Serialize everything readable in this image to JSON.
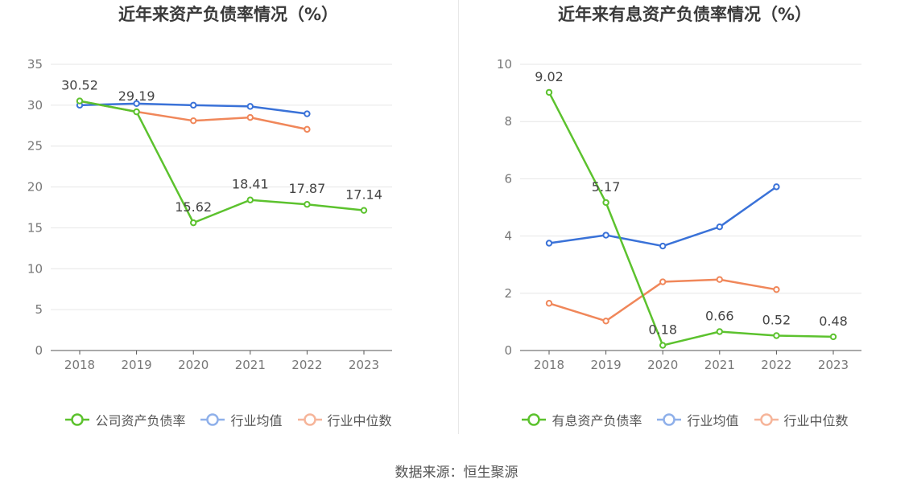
{
  "source": "数据来源：恒生聚源",
  "chart_data": [
    {
      "type": "line",
      "title": "近年来资产负债率情况（%）",
      "categories": [
        "2018",
        "2019",
        "2020",
        "2021",
        "2022",
        "2023"
      ],
      "ylim": [
        0,
        35
      ],
      "yticks": [
        0,
        5,
        10,
        15,
        20,
        25,
        30,
        35
      ],
      "grid": true,
      "legend_position": "bottom",
      "series": [
        {
          "name": "公司资产负债率",
          "color": "#5cc22e",
          "values": [
            30.52,
            29.19,
            15.62,
            18.41,
            17.87,
            17.14
          ],
          "labels": [
            "30.52",
            "29.19",
            "15.62",
            "18.41",
            "17.87",
            "17.14"
          ]
        },
        {
          "name": "行业均值",
          "color": "#3a72d8",
          "values": [
            30.0,
            30.2,
            30.0,
            29.85,
            28.95,
            null
          ]
        },
        {
          "name": "行业中位数",
          "color": "#f0875a",
          "values": [
            30.5,
            29.2,
            28.1,
            28.5,
            27.05,
            null
          ]
        }
      ]
    },
    {
      "type": "line",
      "title": "近年来有息资产负债率情况（%）",
      "categories": [
        "2018",
        "2019",
        "2020",
        "2021",
        "2022",
        "2023"
      ],
      "ylim": [
        0,
        10
      ],
      "yticks": [
        0,
        2,
        4,
        6,
        8,
        10
      ],
      "grid": true,
      "legend_position": "bottom",
      "series": [
        {
          "name": "有息资产负债率",
          "color": "#5cc22e",
          "values": [
            9.02,
            5.17,
            0.18,
            0.66,
            0.52,
            0.48
          ],
          "labels": [
            "9.02",
            "5.17",
            "0.18",
            "0.66",
            "0.52",
            "0.48"
          ]
        },
        {
          "name": "行业均值",
          "color": "#3a72d8",
          "values": [
            3.75,
            4.03,
            3.65,
            4.32,
            5.72,
            null
          ]
        },
        {
          "name": "行业中位数",
          "color": "#f0875a",
          "values": [
            1.65,
            1.03,
            2.4,
            2.48,
            2.13,
            null
          ]
        }
      ]
    }
  ]
}
